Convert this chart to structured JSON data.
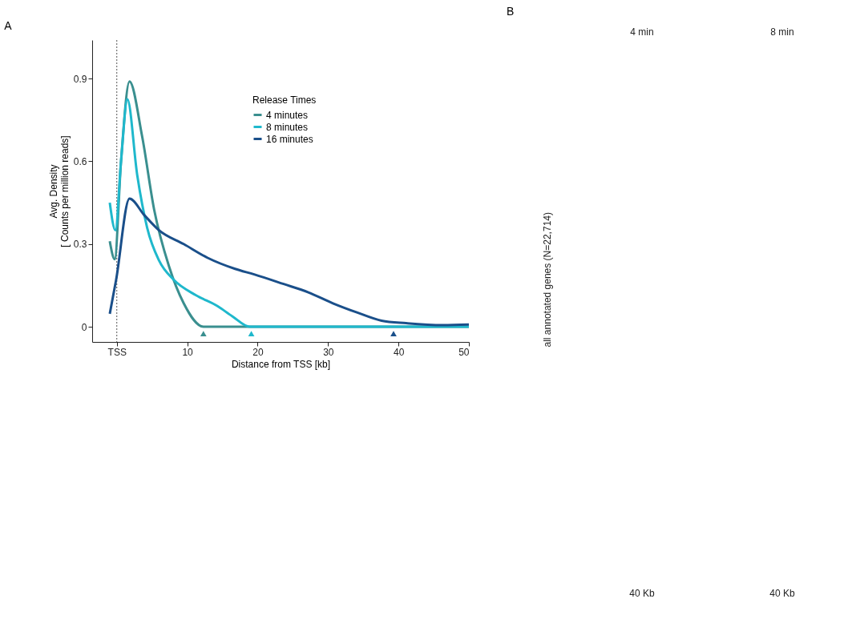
{
  "chart_data": [
    {
      "type": "line",
      "title": "A",
      "xlabel": "Distance from TSS [kb]",
      "ylabel": [
        "Avg. Density",
        "[ Counts per million reads]"
      ],
      "legend_title": "Release Times",
      "legend": "top right",
      "grid": false,
      "line_style": "solid",
      "marker": "none",
      "xlim": [
        -3.5,
        50
      ],
      "xticks": [
        {
          "value": 0,
          "label": "TSS"
        },
        10,
        20,
        30,
        40,
        50
      ],
      "ylim": [
        -0.055,
        1.04
      ],
      "yticks": [
        0,
        0.3,
        0.6,
        0.9
      ],
      "ref_lines": [
        {
          "axis": "x",
          "value": 0,
          "color": "#555555",
          "line_style": "dotted"
        }
      ],
      "series": [
        {
          "name": "4 minutes",
          "color": "#3a8f8f",
          "x": [
            -1.0,
            -0.3,
            0.6,
            1.8,
            3.6,
            5.3,
            7.4,
            9.5,
            12.3,
            20,
            30,
            40,
            50
          ],
          "values": [
            0.31,
            0.245,
            0.6,
            0.89,
            0.69,
            0.425,
            0.22,
            0.085,
            0,
            0,
            0,
            0,
            0
          ]
        },
        {
          "name": "8 minutes",
          "color": "#1fb8cc",
          "x": [
            -1.0,
            -0.2,
            0.6,
            1.5,
            2.9,
            4.3,
            6.0,
            8.1,
            11.2,
            14.3,
            16.4,
            18.9,
            30,
            40,
            50
          ],
          "values": [
            0.45,
            0.35,
            0.6,
            0.825,
            0.55,
            0.36,
            0.24,
            0.17,
            0.115,
            0.075,
            0.038,
            0,
            0,
            0,
            0
          ]
        },
        {
          "name": "16 minutes",
          "color": "#1a4f8a",
          "x": [
            -1.0,
            -0.1,
            1.8,
            3.9,
            6.0,
            9.5,
            12.9,
            16.8,
            19.5,
            23.7,
            27.2,
            30.7,
            34.1,
            37.6,
            41.1,
            46.3,
            50
          ],
          "values": [
            0.047,
            0.17,
            0.465,
            0.405,
            0.35,
            0.3,
            0.25,
            0.21,
            0.19,
            0.155,
            0.125,
            0.085,
            0.052,
            0.022,
            0.013,
            0.006,
            0.008
          ]
        },
        {
          "type": "scatter",
          "marker": "triangle",
          "x": [
            12.3,
            19.1,
            39.3
          ],
          "values": [
            -0.025,
            -0.025,
            -0.025
          ],
          "colors": [
            "#3a8f8f",
            "#1fb8cc",
            "#1a4f8a"
          ]
        }
      ]
    },
    {
      "type": "other",
      "title": "B",
      "categories": [
        "4 min",
        "8 min"
      ],
      "ylabel": "all  annotated genes (N=22,714)",
      "annotations": [
        "40 Kb",
        "40 Kb"
      ]
    }
  ]
}
